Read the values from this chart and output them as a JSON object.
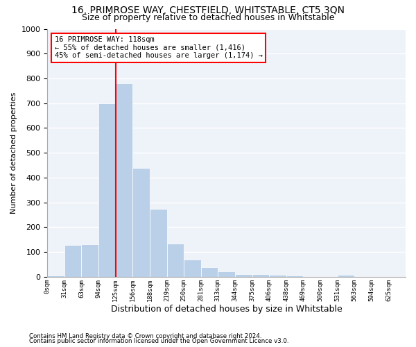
{
  "title": "16, PRIMROSE WAY, CHESTFIELD, WHITSTABLE, CT5 3QN",
  "subtitle": "Size of property relative to detached houses in Whitstable",
  "xlabel": "Distribution of detached houses by size in Whitstable",
  "ylabel": "Number of detached properties",
  "bar_values": [
    5,
    128,
    130,
    700,
    780,
    440,
    275,
    135,
    70,
    38,
    22,
    12,
    12,
    8,
    5,
    0,
    0,
    8,
    0,
    0,
    0
  ],
  "bin_labels": [
    "0sqm",
    "31sqm",
    "63sqm",
    "94sqm",
    "125sqm",
    "156sqm",
    "188sqm",
    "219sqm",
    "250sqm",
    "281sqm",
    "313sqm",
    "344sqm",
    "375sqm",
    "406sqm",
    "438sqm",
    "469sqm",
    "500sqm",
    "531sqm",
    "563sqm",
    "594sqm",
    "625sqm"
  ],
  "bar_color": "#bad0e8",
  "vline_x": 4,
  "vline_color": "red",
  "annotation_text": "16 PRIMROSE WAY: 118sqm\n← 55% of detached houses are smaller (1,416)\n45% of semi-detached houses are larger (1,174) →",
  "annotation_box_facecolor": "white",
  "annotation_box_edgecolor": "red",
  "ylim": [
    0,
    1000
  ],
  "yticks": [
    0,
    100,
    200,
    300,
    400,
    500,
    600,
    700,
    800,
    900,
    1000
  ],
  "background_color": "#eef2f9",
  "grid_color": "white",
  "footer_line1": "Contains HM Land Registry data © Crown copyright and database right 2024.",
  "footer_line2": "Contains public sector information licensed under the Open Government Licence v3.0.",
  "title_fontsize": 10,
  "subtitle_fontsize": 9,
  "ylabel_fontsize": 8,
  "xlabel_fontsize": 9
}
